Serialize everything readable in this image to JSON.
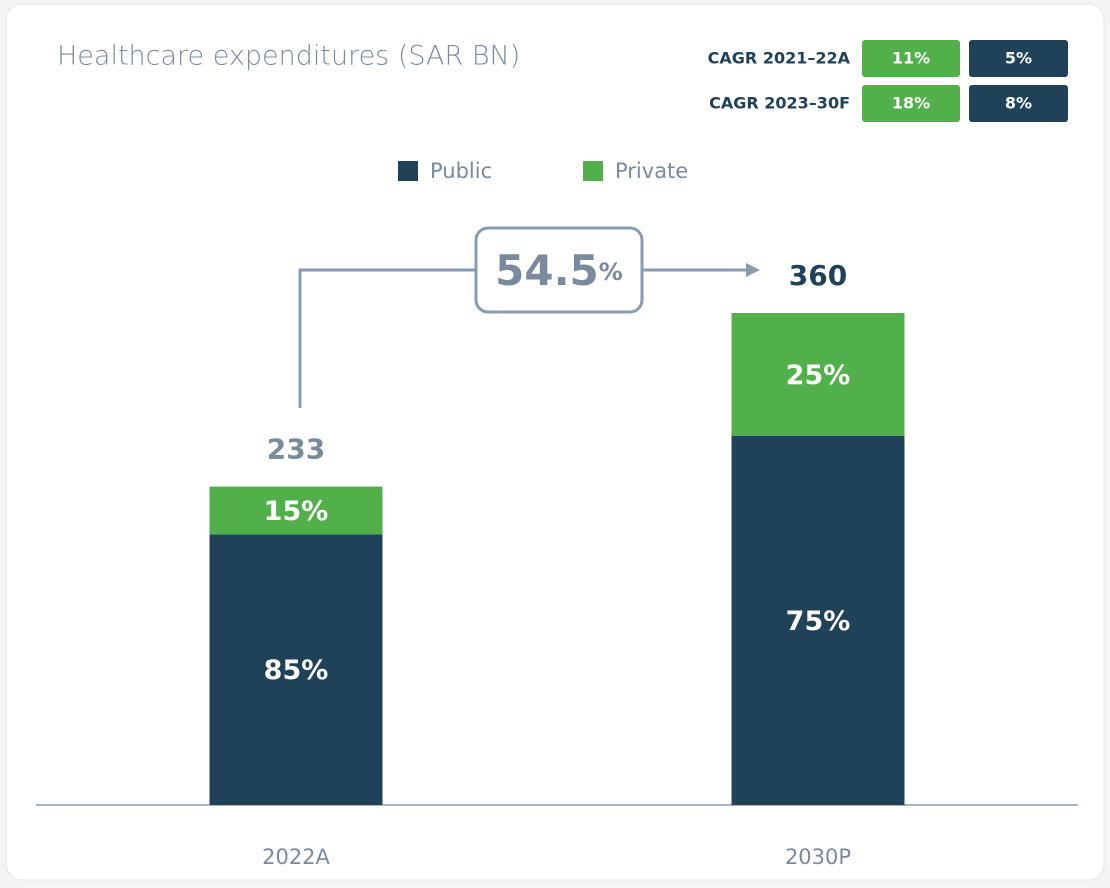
{
  "chart_data": {
    "type": "bar",
    "title": "Healthcare expenditures (SAR BN)",
    "categories": [
      "2022A",
      "2030P"
    ],
    "totals": [
      233,
      360
    ],
    "series": [
      {
        "name": "Public",
        "color": "#1f4259",
        "values": [
          85,
          75
        ],
        "value_labels": [
          "85%",
          "75%"
        ]
      },
      {
        "name": "Private",
        "color": "#52b04a",
        "values": [
          15,
          25
        ],
        "value_labels": [
          "15%",
          "25%"
        ]
      }
    ],
    "growth": 54.5,
    "growth_unit": "%",
    "cagr": [
      {
        "label": "CAGR 2021–22A",
        "values": [
          11,
          5
        ],
        "value_labels": [
          "11%",
          "5%"
        ]
      },
      {
        "label": "CAGR 2023–30F",
        "values": [
          18,
          8
        ],
        "value_labels": [
          "18%",
          "8%"
        ]
      }
    ],
    "legend": "top"
  }
}
